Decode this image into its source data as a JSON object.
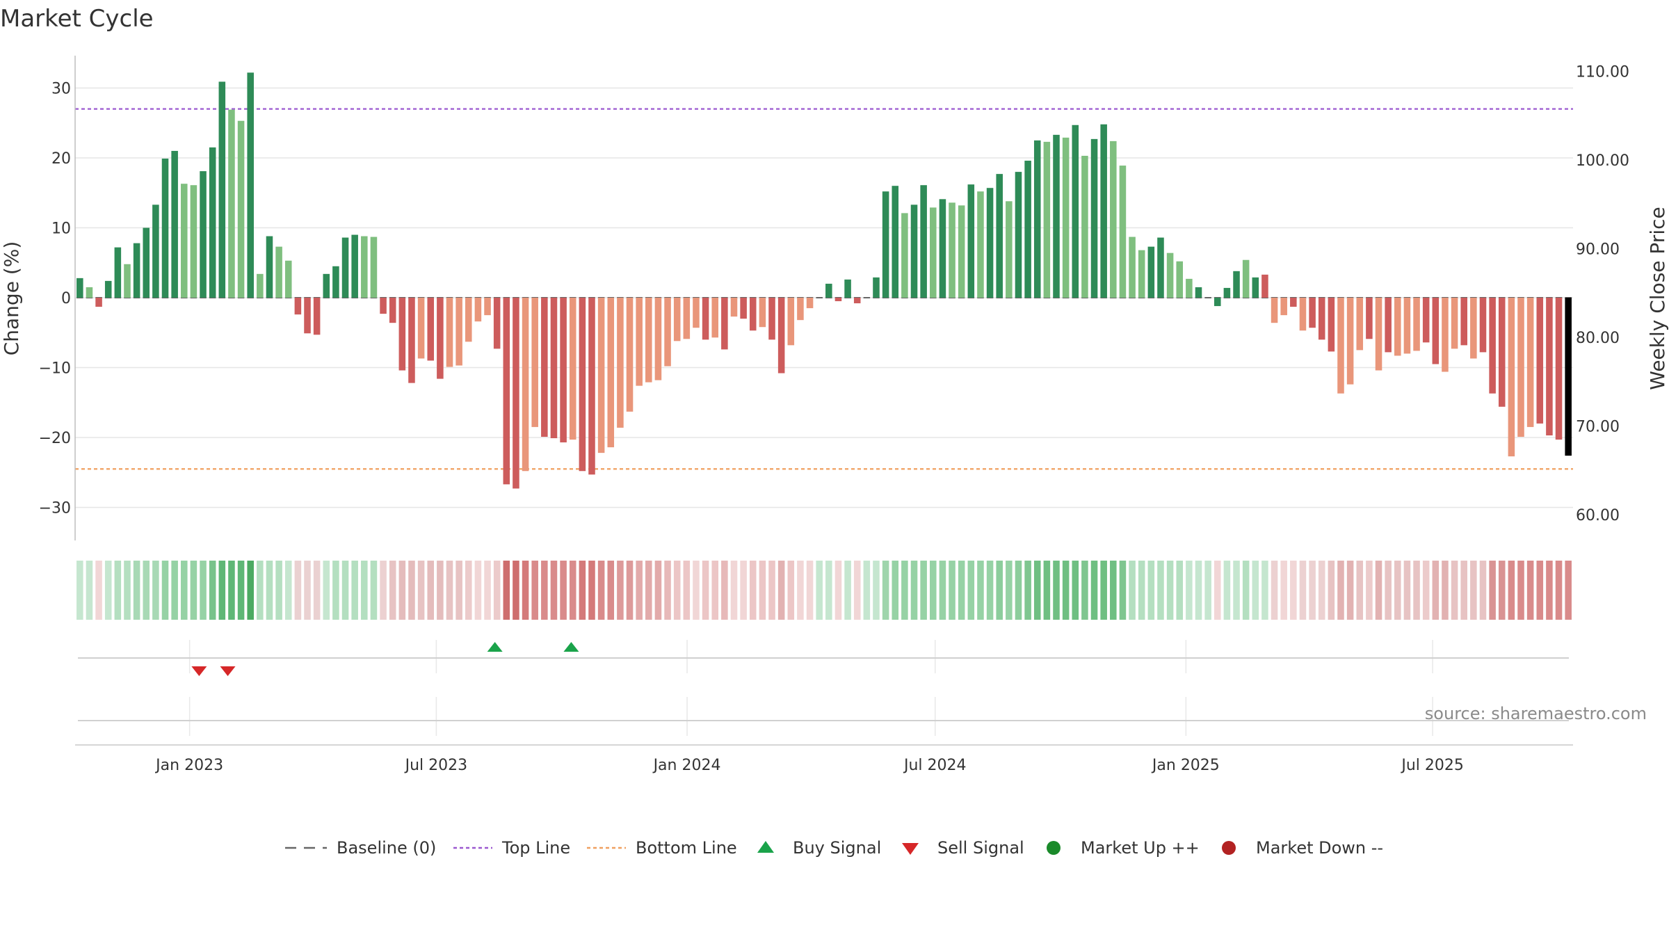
{
  "chart_data": {
    "type": "bar",
    "title": "Market Cycle",
    "ylabel": "Change (%)",
    "y2label": "Weekly Close Price",
    "ylim": [
      -35,
      35
    ],
    "y2lim": [
      57,
      114
    ],
    "yticks": [
      30,
      20,
      10,
      0,
      -10,
      -20,
      -30
    ],
    "ytick_labels": [
      "30",
      "20",
      "10",
      "0",
      "−10",
      "−20",
      "−30"
    ],
    "y2ticks": [
      110,
      100,
      90,
      80,
      70,
      60
    ],
    "y2tick_labels": [
      "110.00",
      "100.00",
      "90.00",
      "80.00",
      "70.00",
      "60.00"
    ],
    "x_range": [
      "2022-10-09",
      "2025-10-12"
    ],
    "xticks": [
      "2023-01-01",
      "2023-07-01",
      "2024-01-01",
      "2024-07-01",
      "2025-01-01",
      "2025-07-01"
    ],
    "xtick_labels": [
      "Jan 2023",
      "Jul 2023",
      "Jan 2024",
      "Jul 2024",
      "Jan 2025",
      "Jul 2025"
    ],
    "grid": true,
    "first_week": "2022-10-09",
    "week_step_days": 7,
    "top_line": 27,
    "bottom_line": -24.5,
    "values": [
      2.8,
      1.5,
      -1.3,
      2.4,
      7.2,
      4.8,
      7.8,
      10,
      13.3,
      19.9,
      21,
      16.3,
      16.1,
      18.1,
      21.5,
      30.9,
      26.9,
      25.3,
      32.2,
      3.4,
      8.8,
      7.3,
      5.3,
      -2.4,
      -5.1,
      -5.3,
      3.4,
      4.5,
      8.6,
      9,
      8.8,
      8.7,
      -2.3,
      -3.6,
      -10.4,
      -12.2,
      -8.7,
      -9,
      -11.6,
      -9.9,
      -9.7,
      -6.3,
      -3.4,
      -2.5,
      -7.3,
      -26.7,
      -27.3,
      -24.8,
      -18.5,
      -19.9,
      -20.1,
      -20.7,
      -20.3,
      -24.8,
      -25.3,
      -22.2,
      -21.4,
      -18.6,
      -16.3,
      -12.6,
      -12.1,
      -11.8,
      -9.8,
      -6.2,
      -5.9,
      -4.3,
      -6,
      -5.7,
      -7.4,
      -2.7,
      -3,
      -4.7,
      -4.2,
      -6,
      -10.8,
      -6.8,
      -3.2,
      -1.5,
      0,
      2,
      -0.5,
      2.6,
      -0.8,
      0,
      2.9,
      15.2,
      16,
      12.1,
      13.3,
      16.1,
      12.9,
      14.1,
      13.6,
      13.2,
      16.2,
      15.2,
      15.7,
      17.7,
      13.8,
      18,
      19.6,
      22.5,
      22.3,
      23.3,
      22.9,
      24.7,
      20.3,
      22.7,
      24.8,
      22.4,
      18.9,
      8.7,
      6.8,
      7.3,
      8.6,
      6.4,
      5.2,
      2.7,
      1.5,
      0,
      -1.2,
      1.4,
      3.8,
      5.4,
      2.9,
      3.3,
      -3.6,
      -2.5,
      -1.3,
      -4.7,
      -4.3,
      -6,
      -7.7,
      -13.7,
      -12.4,
      -7.5,
      -5.9,
      -10.4,
      -7.8,
      -8.3,
      -8,
      -7.6,
      -6.4,
      -9.5,
      -10.6,
      -7.3,
      -6.8,
      -8.7,
      -7.8,
      -13.7,
      -15.6,
      -22.7,
      -19.9,
      -18.5,
      -18,
      -19.7,
      -20.3,
      -22.6
    ],
    "bar_colors": [
      "#2e8b57",
      "#7fbf7f",
      "#cd5c5c",
      "#2e8b57",
      "#2e8b57",
      "#7fbf7f",
      "#2e8b57",
      "#2e8b57",
      "#2e8b57",
      "#2e8b57",
      "#2e8b57",
      "#7fbf7f",
      "#7fbf7f",
      "#2e8b57",
      "#2e8b57",
      "#2e8b57",
      "#7fbf7f",
      "#7fbf7f",
      "#2e8b57",
      "#7fbf7f",
      "#2e8b57",
      "#7fbf7f",
      "#7fbf7f",
      "#cd5c5c",
      "#cd5c5c",
      "#cd5c5c",
      "#2e8b57",
      "#2e8b57",
      "#2e8b57",
      "#2e8b57",
      "#7fbf7f",
      "#7fbf7f",
      "#cd5c5c",
      "#cd5c5c",
      "#cd5c5c",
      "#cd5c5c",
      "#e9967a",
      "#cd5c5c",
      "#cd5c5c",
      "#e9967a",
      "#e9967a",
      "#e9967a",
      "#e9967a",
      "#e9967a",
      "#cd5c5c",
      "#cd5c5c",
      "#cd5c5c",
      "#e9967a",
      "#e9967a",
      "#cd5c5c",
      "#cd5c5c",
      "#cd5c5c",
      "#e9967a",
      "#cd5c5c",
      "#cd5c5c",
      "#e9967a",
      "#e9967a",
      "#e9967a",
      "#e9967a",
      "#e9967a",
      "#e9967a",
      "#e9967a",
      "#e9967a",
      "#e9967a",
      "#e9967a",
      "#e9967a",
      "#cd5c5c",
      "#e9967a",
      "#cd5c5c",
      "#e9967a",
      "#cd5c5c",
      "#cd5c5c",
      "#e9967a",
      "#cd5c5c",
      "#cd5c5c",
      "#e9967a",
      "#e9967a",
      "#e9967a",
      "#cd5c5c",
      "#2e8b57",
      "#cd5c5c",
      "#2e8b57",
      "#cd5c5c",
      "#2e8b57",
      "#2e8b57",
      "#2e8b57",
      "#2e8b57",
      "#7fbf7f",
      "#2e8b57",
      "#2e8b57",
      "#7fbf7f",
      "#2e8b57",
      "#7fbf7f",
      "#7fbf7f",
      "#2e8b57",
      "#7fbf7f",
      "#2e8b57",
      "#2e8b57",
      "#7fbf7f",
      "#2e8b57",
      "#2e8b57",
      "#2e8b57",
      "#7fbf7f",
      "#2e8b57",
      "#7fbf7f",
      "#2e8b57",
      "#7fbf7f",
      "#2e8b57",
      "#2e8b57",
      "#7fbf7f",
      "#7fbf7f",
      "#7fbf7f",
      "#7fbf7f",
      "#2e8b57",
      "#2e8b57",
      "#7fbf7f",
      "#7fbf7f",
      "#7fbf7f",
      "#2e8b57",
      "#cd5c5c",
      "#2e8b57",
      "#2e8b57",
      "#2e8b57",
      "#7fbf7f",
      "#2e8b57",
      "#cd5c5c",
      "#e9967a",
      "#e9967a",
      "#cd5c5c",
      "#e9967a",
      "#cd5c5c",
      "#cd5c5c",
      "#cd5c5c",
      "#e9967a",
      "#e9967a",
      "#e9967a",
      "#cd5c5c",
      "#e9967a",
      "#cd5c5c",
      "#e9967a",
      "#e9967a",
      "#e9967a",
      "#cd5c5c",
      "#cd5c5c",
      "#e9967a",
      "#e9967a",
      "#cd5c5c",
      "#e9967a",
      "#cd5c5c",
      "#cd5c5c",
      "#cd5c5c",
      "#e9967a",
      "#e9967a",
      "#e9967a",
      "#cd5c5c",
      "#cd5c5c",
      "#cd5c5c"
    ],
    "heat_colors": [
      "#c5e6cf",
      "#c5e6cf",
      "#f1d6d6",
      "#c5e6cf",
      "#b4dfc0",
      "#b4dfc0",
      "#a8d9b5",
      "#a8d9b5",
      "#a8d9b5",
      "#96d2a5",
      "#96d2a5",
      "#96d2a5",
      "#96d2a5",
      "#96d2a5",
      "#78c38b",
      "#5fb776",
      "#5fb776",
      "#5fb776",
      "#4caa62",
      "#b4dfc0",
      "#b4dfc0",
      "#b4dfc0",
      "#c5e6cf",
      "#ead1d1",
      "#ead1d1",
      "#ead1d1",
      "#c5e6cf",
      "#b4dfc0",
      "#b4dfc0",
      "#b4dfc0",
      "#b4dfc0",
      "#b4dfc0",
      "#ecd1d1",
      "#e7c3c3",
      "#e4bcbc",
      "#e4bcbc",
      "#e7c3c3",
      "#e4bcbc",
      "#e4bcbc",
      "#e7c3c3",
      "#e7c3c3",
      "#eccbcb",
      "#f1d6d6",
      "#f1d6d6",
      "#eccbcb",
      "#ce6e6e",
      "#ce6e6e",
      "#d47a7a",
      "#d98b8b",
      "#d98b8b",
      "#d98b8b",
      "#d98b8b",
      "#d98b8b",
      "#d47a7a",
      "#d47a7a",
      "#d98b8b",
      "#d98b8b",
      "#dd9a9a",
      "#dd9a9a",
      "#e2aaaa",
      "#e2aaaa",
      "#e2aaaa",
      "#e7b9b9",
      "#ecc6c6",
      "#ecc6c6",
      "#f1d6d6",
      "#ecc6c6",
      "#ecc6c6",
      "#e7b9b9",
      "#f1d6d6",
      "#f1d6d6",
      "#ecc6c6",
      "#ecc6c6",
      "#ecc6c6",
      "#e2b2b2",
      "#ecc6c6",
      "#f1d6d6",
      "#f1d6d6",
      "#c5e6cf",
      "#c5e6cf",
      "#f1d6d6",
      "#c5e6cf",
      "#f1d6d6",
      "#c5e6cf",
      "#c5e6cf",
      "#9fd5ac",
      "#96d2a5",
      "#96d2a5",
      "#96d2a5",
      "#96d2a5",
      "#96d2a5",
      "#96d2a5",
      "#96d2a5",
      "#96d2a5",
      "#96d2a5",
      "#96d2a5",
      "#96d2a5",
      "#8ccd9c",
      "#96d2a5",
      "#8ccd9c",
      "#7fc690",
      "#6fbf82",
      "#6fbf82",
      "#6fbf82",
      "#6fbf82",
      "#6fbf82",
      "#7fc690",
      "#6fbf82",
      "#6fbf82",
      "#6fbf82",
      "#7fc690",
      "#b4dfc0",
      "#b4dfc0",
      "#b4dfc0",
      "#b4dfc0",
      "#b4dfc0",
      "#b4dfc0",
      "#c5e6cf",
      "#c5e6cf",
      "#c5e6cf",
      "#f1d6d6",
      "#c5e6cf",
      "#c5e6cf",
      "#b4dfc0",
      "#c5e6cf",
      "#c5e6cf",
      "#ecd1d1",
      "#f1d6d6",
      "#f1d6d6",
      "#ecd1d1",
      "#ecd1d1",
      "#ecd1d1",
      "#e7c3c3",
      "#e2b2b2",
      "#e2b2b2",
      "#e7c3c3",
      "#eccbcb",
      "#e2b2b2",
      "#e7c3c3",
      "#e7c3c3",
      "#e7c3c3",
      "#e7c3c3",
      "#eccbcb",
      "#e2b2b2",
      "#e2b2b2",
      "#e7c3c3",
      "#e7c3c3",
      "#e7c3c3",
      "#e7c3c3",
      "#d99393",
      "#d99393",
      "#d98b8b",
      "#d98b8b",
      "#d98b8b",
      "#d98b8b",
      "#d98b8b",
      "#d98b8b",
      "#d98b8b"
    ],
    "buy_signals": [
      "2023-08-13",
      "2023-10-08"
    ],
    "sell_signals": [
      "2023-01-08",
      "2023-01-29"
    ],
    "legend": {
      "placement": "bottom",
      "items": [
        {
          "label": "Baseline (0)",
          "kind": "dash",
          "color": "#666666"
        },
        {
          "label": "Top Line",
          "kind": "dot",
          "color": "#9b59d0"
        },
        {
          "label": "Bottom Line",
          "kind": "dot",
          "color": "#f0a060"
        },
        {
          "label": "Buy Signal",
          "kind": "up",
          "color": "#1aa34a"
        },
        {
          "label": "Sell Signal",
          "kind": "down",
          "color": "#d62728"
        },
        {
          "label": "Market Up ++",
          "kind": "dot-marker",
          "color": "#1a8a2a"
        },
        {
          "label": "Market Down --",
          "kind": "dot-marker",
          "color": "#b22222"
        }
      ]
    },
    "source": "source: sharemaestro.com"
  }
}
